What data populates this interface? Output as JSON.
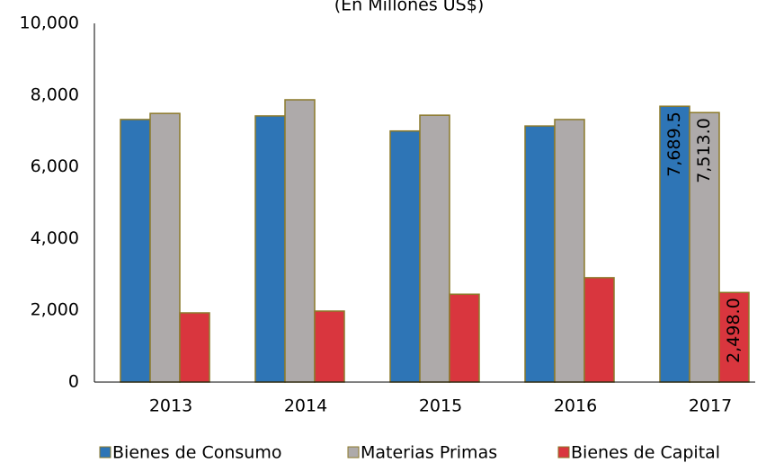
{
  "chart_data": {
    "type": "bar",
    "subtitle": "(En Millones US$)",
    "categories": [
      "2013",
      "2014",
      "2015",
      "2016",
      "2017"
    ],
    "series": [
      {
        "name": "Bienes de Consumo",
        "color": "#2e75b6",
        "values": [
          7320,
          7420,
          7000,
          7140,
          7689.5
        ],
        "value_labels": [
          null,
          null,
          null,
          null,
          "7,689.5"
        ]
      },
      {
        "name": "Materias Primas",
        "color": "#aeaaaa",
        "values": [
          7490,
          7870,
          7440,
          7320,
          7513.0
        ],
        "value_labels": [
          null,
          null,
          null,
          null,
          "7,513.0"
        ]
      },
      {
        "name": "Bienes de Capital",
        "color": "#d9363e",
        "values": [
          1930,
          1980,
          2450,
          2910,
          2498.0
        ],
        "value_labels": [
          null,
          null,
          null,
          null,
          "2,498.0"
        ]
      }
    ],
    "ylim": [
      0,
      10000
    ],
    "yticks": [
      0,
      {
        "value": 2000,
        "label": "2,000"
      },
      {
        "value": 4000,
        "label": "4,000"
      },
      {
        "value": 6000,
        "label": "6,000"
      },
      {
        "value": 8000,
        "label": "8,000"
      },
      {
        "value": 10000,
        "label": "10,000"
      }
    ],
    "grid": false,
    "legend": "bottom"
  }
}
